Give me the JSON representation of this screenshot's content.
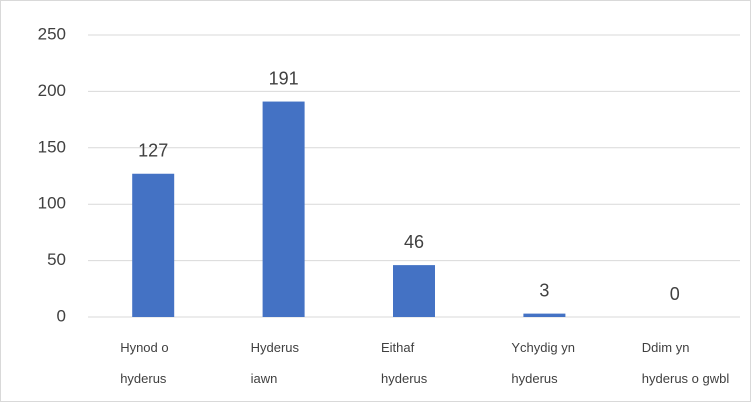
{
  "chart_data": {
    "type": "bar",
    "categories": [
      "Hynod o\nhyderus",
      "Hyderus\niawn",
      "Eithaf\nhyderus",
      "Ychydig yn\nhyderus",
      "Ddim yn\nhyderus o gwbl"
    ],
    "values": [
      127,
      191,
      46,
      3,
      0
    ],
    "color": "#4472c4",
    "ylim": [
      0,
      250
    ],
    "yticks": [
      0,
      50,
      100,
      150,
      200,
      250
    ],
    "grid": true
  }
}
